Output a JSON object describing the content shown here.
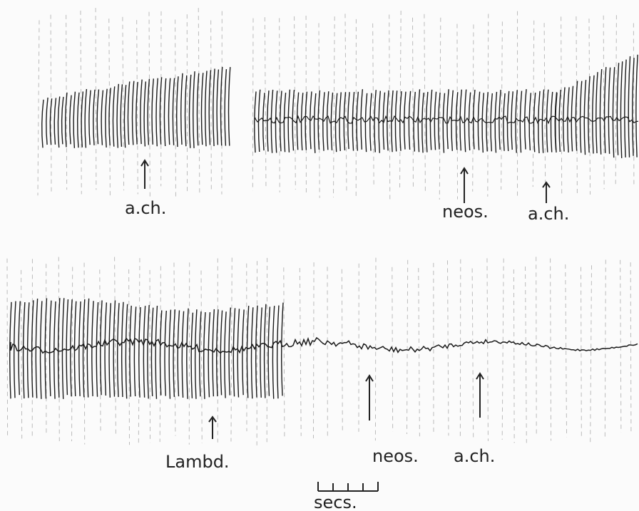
{
  "panels": [
    {
      "labels": [
        "a.ch.",
        "neos.",
        "a.ch."
      ]
    },
    {
      "labels": [
        "Lambd.",
        "neos.",
        "a.ch."
      ]
    }
  ],
  "scale": {
    "label": "secs."
  }
}
